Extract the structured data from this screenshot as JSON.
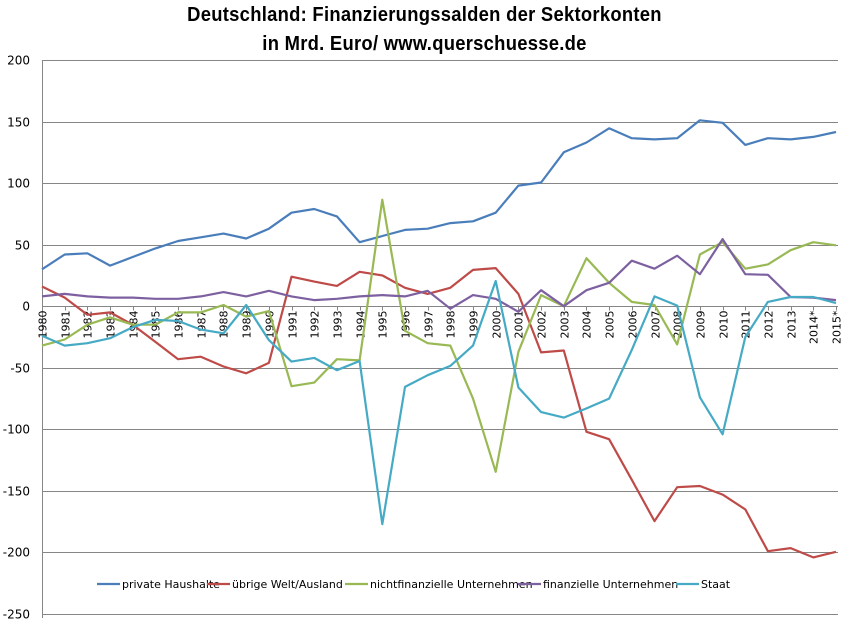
{
  "chart_data": {
    "type": "line",
    "title": "Deutschland: Finanzierungssalden der Sektorkonten",
    "subtitle": "in Mrd. Euro/ www.querschuesse.de",
    "xlabel": "",
    "ylabel": "",
    "ylim": [
      -250,
      200
    ],
    "yticks": [
      200,
      150,
      100,
      50,
      0,
      -50,
      -100,
      -150,
      -200,
      -250
    ],
    "grid": true,
    "legend_position": "bottom",
    "categories": [
      "1980",
      "1981",
      "1982",
      "1983",
      "1984",
      "1985",
      "1986",
      "1987",
      "1988",
      "1989",
      "1990",
      "1991",
      "1992",
      "1993",
      "1994",
      "1995",
      "1996",
      "1997",
      "1998",
      "1999",
      "2000",
      "2001",
      "2002",
      "2003",
      "2004",
      "2005",
      "2006",
      "2007",
      "2008",
      "2009",
      "2010",
      "2011",
      "2012",
      "2013",
      "2014*",
      "2015*"
    ],
    "series": [
      {
        "name": "private Haushalte",
        "color": "#4a7ebb",
        "values": [
          30,
          42,
          43,
          33,
          40,
          47,
          53,
          56,
          59,
          55,
          63,
          76,
          79,
          73,
          52,
          57,
          62,
          63,
          67.5,
          69,
          76,
          98,
          100.5,
          125,
          133,
          144.5,
          136.5,
          135.5,
          136.5,
          151,
          149,
          131,
          136.5,
          135.5,
          137.5,
          141.5
        ]
      },
      {
        "name": "übrige Welt/Ausland",
        "color": "#be4b48",
        "values": [
          16,
          7,
          -7,
          -5,
          -15,
          -29,
          -43,
          -41,
          -49,
          -54.5,
          -46,
          24,
          20,
          16.5,
          28,
          25,
          15,
          10,
          15,
          29.5,
          31,
          10,
          -37.5,
          -36,
          -102,
          -108,
          -141,
          -174.5,
          -147,
          -146,
          -153,
          -165,
          -199,
          -196.5,
          -204,
          -199.5
        ]
      },
      {
        "name": "nichtfinanzielle Unternehmen",
        "color": "#98b954",
        "values": [
          -32,
          -27,
          -15,
          -9,
          -15,
          -15,
          -5,
          -5,
          1,
          -8.5,
          -4,
          -65,
          -62,
          -43,
          -44,
          86.5,
          -20,
          -30,
          -32,
          -75,
          -134.5,
          -37,
          9,
          0,
          39,
          19,
          3.5,
          1,
          -31,
          42,
          52,
          30.5,
          34,
          45.5,
          52,
          49.5
        ]
      },
      {
        "name": "finanzielle Unternehmen",
        "color": "#7d60a0",
        "values": [
          8,
          10,
          8,
          7,
          7,
          6,
          6,
          8,
          11.5,
          8,
          12.5,
          8,
          5,
          6,
          8,
          9,
          8,
          12.5,
          -2,
          9,
          6,
          -4.5,
          13,
          0,
          13,
          19,
          37,
          30.5,
          41,
          26,
          54.5,
          26,
          25.5,
          7.5,
          7,
          5
        ]
      },
      {
        "name": "Staat",
        "color": "#46aac5",
        "values": [
          -24,
          -32,
          -30,
          -26,
          -17,
          -11,
          -12,
          -19,
          -22,
          1,
          -27.5,
          -45,
          -42,
          -52,
          -44.5,
          -177,
          -65.5,
          -56,
          -48.5,
          -32,
          20.5,
          -66,
          -86,
          -90.5,
          -83,
          -75,
          -35.5,
          8,
          0.5,
          -74,
          -104,
          -25,
          3.5,
          7.5,
          7.5,
          2.5
        ]
      }
    ]
  }
}
